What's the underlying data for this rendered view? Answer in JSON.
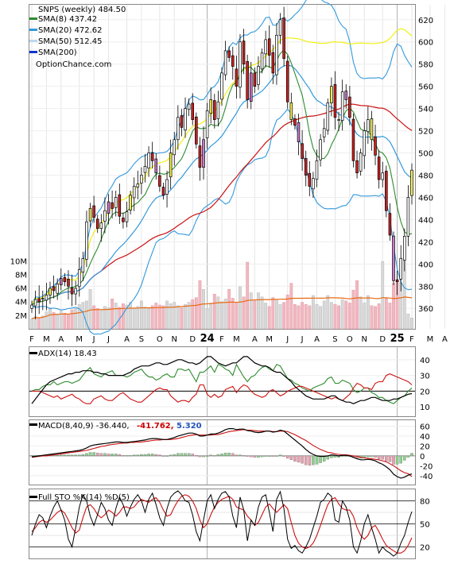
{
  "colors": {
    "sma8": "#2e8b2e",
    "sma20": "#3399dd",
    "sma50": "#f0f000",
    "sma200": "#cc1111",
    "volume_avg": "#e86a10",
    "volume_up": "#d8d8d8",
    "volume_down": "#f0b8c0",
    "candle_up": "#ffffff",
    "candle_down": "#cc2222",
    "candle_yellow": "#f5f050",
    "candle_magenta": "#cc77cc",
    "adx_line": "#000000",
    "plus_di": "#2e8b2e",
    "minus_di": "#cc1111",
    "macd_line": "#000000",
    "signal_line": "#cc1111",
    "macd_label_red": "#cc0000",
    "macd_label_blue": "#2255bb",
    "sto_k": "#000000",
    "sto_d": "#cc1111"
  },
  "legend": {
    "title": "SNPS (weekly) 484.50",
    "sma8": "SMA(8) 437.42",
    "sma20": "SMA(20) 472.62",
    "sma50": "SMA(50) 512.45",
    "sma200": "SMA(200)",
    "source": "OptionChance.com"
  },
  "panels": {
    "adx_label": "ADX(14) 18.43",
    "macd_label": "MACD(8,40,9) -36.440,",
    "macd_value_red": "-41.762,",
    "macd_value_blue": "5.320",
    "sto_label": "Full STO %K(14) %D(5)"
  },
  "chart_data": [
    {
      "type": "line",
      "name": "price",
      "y_ticks": [
        360,
        380,
        400,
        420,
        440,
        460,
        480,
        500,
        520,
        540,
        560,
        580,
        600,
        620
      ],
      "ylim": [
        343,
        632
      ],
      "x_ticks": [
        "F",
        "M",
        "A",
        "M",
        "J",
        "J",
        "A",
        "S",
        "O",
        "N",
        "D",
        "24",
        "F",
        "M",
        "A",
        "M",
        "J",
        "J",
        "A",
        "S",
        "O",
        "N",
        "D",
        "25",
        "F",
        "M",
        "A",
        "M"
      ],
      "x_tick_week": [
        0,
        4,
        8,
        13,
        17,
        21,
        26,
        30,
        35,
        39,
        44,
        48,
        52,
        56,
        61,
        65,
        70,
        74,
        78,
        83,
        87,
        91,
        96,
        100,
        104,
        109,
        113,
        117
      ],
      "year_marks": [
        48,
        100
      ],
      "close": [
        363,
        368,
        366,
        369,
        372,
        378,
        376,
        382,
        387,
        384,
        380,
        373,
        378,
        395,
        405,
        438,
        450,
        442,
        432,
        437,
        448,
        456,
        450,
        460,
        443,
        438,
        447,
        462,
        470,
        472,
        480,
        488,
        500,
        493,
        482,
        470,
        462,
        476,
        500,
        512,
        532,
        523,
        540,
        544,
        530,
        508,
        487,
        512,
        538,
        548,
        530,
        546,
        572,
        592,
        586,
        578,
        560,
        600,
        580,
        548,
        572,
        560,
        578,
        590,
        602,
        588,
        572,
        606,
        620,
        585,
        546,
        530,
        525,
        510,
        495,
        480,
        470,
        477,
        493,
        512,
        522,
        545,
        560,
        532,
        530,
        555,
        548,
        532,
        493,
        482,
        500,
        520,
        530,
        512,
        498,
        476,
        482,
        448,
        426,
        385,
        384,
        405,
        425,
        460,
        484.5
      ],
      "volume_m": [
        1.5,
        1.8,
        1.6,
        1.9,
        2.5,
        3.1,
        2.4,
        2.2,
        2.6,
        2.3,
        2.1,
        2.8,
        3.0,
        3.6,
        3.9,
        4.1,
        5.8,
        3.4,
        3.0,
        2.8,
        3.3,
        3.1,
        4.4,
        3.8,
        3.2,
        3.7,
        3.5,
        3.9,
        3.0,
        3.3,
        4.1,
        3.2,
        3.0,
        3.4,
        3.8,
        3.5,
        3.4,
        4.1,
        3.7,
        3.9,
        3.4,
        3.1,
        3.6,
        3.9,
        4.3,
        4.6,
        7.1,
        5.8,
        3.0,
        3.8,
        5.1,
        4.7,
        4.0,
        4.4,
        5.8,
        4.5,
        3.9,
        6.2,
        4.7,
        9.8,
        5.3,
        4.1,
        5.3,
        4.7,
        3.8,
        3.3,
        4.6,
        4.3,
        3.6,
        3.9,
        5.0,
        6.7,
        3.6,
        3.4,
        3.9,
        3.6,
        3.4,
        4.9,
        3.6,
        3.3,
        4.1,
        4.9,
        3.9,
        3.6,
        3.4,
        4.3,
        4.1,
        3.8,
        5.7,
        7.1,
        4.7,
        3.8,
        4.9,
        3.4,
        3.3,
        3.7,
        9.9,
        4.6,
        3.8,
        6.7,
        7.1,
        6.8,
        10.0,
        2.2,
        1.6
      ],
      "volume_ticks": [
        "2M",
        "4M",
        "6M",
        "8M",
        "10M"
      ],
      "volume_ylim": [
        0,
        11.2
      ]
    },
    {
      "type": "line",
      "name": "adx",
      "y_ticks": [
        10,
        20,
        30,
        40
      ],
      "ylim": [
        4,
        48
      ],
      "adx": [
        12,
        15,
        18,
        21,
        24,
        26,
        27,
        28,
        29,
        30,
        31,
        31,
        32,
        32,
        33,
        33,
        33,
        32,
        32,
        31,
        31,
        30,
        30,
        30,
        30,
        30,
        31,
        32,
        34,
        35,
        36,
        36,
        36,
        37,
        38,
        38,
        37,
        37,
        38,
        39,
        40,
        40,
        39,
        38,
        38,
        37,
        38,
        40,
        42,
        42,
        40,
        38,
        37,
        36,
        37,
        38,
        38,
        40,
        42,
        42,
        40,
        38,
        37,
        36,
        36,
        35,
        33,
        32,
        32,
        30,
        28,
        26,
        23,
        21,
        19,
        17,
        16,
        15,
        15,
        15,
        15,
        16,
        17,
        17,
        15,
        14,
        13,
        13,
        12,
        13,
        14,
        14,
        15,
        16,
        16,
        15,
        14,
        14,
        14,
        15,
        15,
        16,
        17,
        18,
        18.43
      ],
      "plus_di": [
        20,
        21,
        21,
        23,
        24,
        24,
        26,
        24,
        25,
        26,
        26,
        25,
        26,
        27,
        30,
        33,
        35,
        31,
        30,
        29,
        31,
        32,
        33,
        30,
        30,
        30,
        29,
        30,
        32,
        33,
        34,
        31,
        29,
        29,
        27,
        28,
        30,
        31,
        29,
        29,
        34,
        34,
        33,
        34,
        30,
        26,
        32,
        32,
        34,
        36,
        32,
        37,
        36,
        34,
        33,
        30,
        37,
        33,
        29,
        26,
        29,
        30,
        33,
        35,
        36,
        34,
        33,
        37,
        36,
        32,
        28,
        27,
        25,
        24,
        22,
        21,
        20,
        22,
        23,
        24,
        25,
        28,
        29,
        25,
        25,
        27,
        26,
        25,
        21,
        19,
        20,
        22,
        22,
        19,
        18,
        16,
        16,
        14,
        13,
        12,
        14,
        16,
        17,
        20,
        22
      ],
      "minus_di": [
        20,
        20,
        20,
        19,
        18,
        17,
        16,
        17,
        15,
        16,
        17,
        18,
        16,
        15,
        13,
        12,
        12,
        15,
        16,
        17,
        15,
        14,
        14,
        16,
        18,
        19,
        17,
        15,
        14,
        13,
        13,
        15,
        17,
        19,
        21,
        22,
        21,
        21,
        17,
        15,
        13,
        14,
        14,
        13,
        16,
        18,
        24,
        24,
        18,
        16,
        18,
        16,
        17,
        21,
        22,
        23,
        19,
        22,
        24,
        23,
        20,
        18,
        17,
        16,
        17,
        20,
        21,
        19,
        17,
        18,
        20,
        21,
        22,
        23,
        23,
        22,
        21,
        20,
        19,
        18,
        17,
        16,
        15,
        16,
        15,
        14,
        16,
        18,
        22,
        25,
        24,
        22,
        22,
        21,
        25,
        26,
        26,
        30,
        31,
        30,
        29,
        28,
        27,
        26,
        24
      ]
    },
    {
      "type": "line",
      "name": "macd",
      "y_ticks": [
        -40,
        -20,
        0,
        20,
        40,
        60
      ],
      "ylim": [
        -58,
        72
      ],
      "macd": [
        -2,
        -1,
        0,
        1,
        2,
        3,
        4,
        5,
        6,
        7,
        8,
        9,
        10,
        11,
        13,
        16,
        20,
        22,
        23,
        24,
        25,
        26,
        27,
        28,
        28,
        27,
        27,
        28,
        29,
        30,
        31,
        32,
        34,
        35,
        35,
        34,
        33,
        33,
        35,
        37,
        40,
        42,
        44,
        46,
        46,
        44,
        40,
        40,
        42,
        44,
        44,
        46,
        49,
        53,
        55,
        55,
        53,
        54,
        54,
        51,
        50,
        48,
        47,
        48,
        50,
        50,
        48,
        49,
        52,
        50,
        44,
        38,
        32,
        26,
        20,
        13,
        7,
        3,
        0,
        -1,
        -1,
        0,
        2,
        1,
        0,
        1,
        1,
        0,
        -3,
        -6,
        -8,
        -8,
        -7,
        -8,
        -10,
        -14,
        -17,
        -22,
        -28,
        -37,
        -42,
        -45,
        -43,
        -39,
        -36.44
      ],
      "signal": [
        -3,
        -2,
        -1,
        0,
        0,
        1,
        2,
        3,
        4,
        5,
        6,
        7,
        8,
        9,
        10,
        11,
        13,
        15,
        17,
        19,
        20,
        22,
        23,
        24,
        25,
        26,
        26,
        27,
        27,
        28,
        28,
        29,
        30,
        31,
        32,
        32,
        33,
        33,
        33,
        34,
        35,
        37,
        39,
        41,
        42,
        43,
        42,
        42,
        42,
        42,
        43,
        43,
        45,
        47,
        49,
        50,
        51,
        52,
        53,
        52,
        52,
        51,
        50,
        50,
        50,
        50,
        49,
        49,
        50,
        50,
        49,
        46,
        43,
        39,
        35,
        31,
        26,
        21,
        17,
        13,
        10,
        7,
        6,
        4,
        3,
        2,
        2,
        1,
        0,
        -1,
        -3,
        -4,
        -5,
        -6,
        -7,
        -8,
        -10,
        -12,
        -16,
        -20,
        -25,
        -30,
        -34,
        -36,
        -41.762
      ],
      "histogram": [
        1,
        1,
        1,
        1,
        2,
        2,
        2,
        2,
        2,
        2,
        2,
        2,
        2,
        2,
        3,
        5,
        7,
        7,
        6,
        5,
        5,
        4,
        4,
        4,
        3,
        1,
        1,
        1,
        2,
        2,
        3,
        3,
        4,
        4,
        3,
        2,
        0,
        0,
        2,
        3,
        5,
        5,
        5,
        5,
        4,
        1,
        -2,
        -2,
        0,
        2,
        1,
        3,
        4,
        6,
        6,
        5,
        2,
        2,
        1,
        -1,
        -2,
        -3,
        -3,
        -2,
        0,
        0,
        -1,
        0,
        2,
        0,
        -5,
        -8,
        -11,
        -13,
        -15,
        -18,
        -19,
        -18,
        -17,
        -14,
        -11,
        -7,
        -4,
        -3,
        -3,
        -1,
        -1,
        -1,
        -3,
        -5,
        -5,
        -4,
        -2,
        -2,
        -3,
        -6,
        -7,
        -10,
        -12,
        -17,
        -17,
        -15,
        -9,
        -3,
        5.32
      ]
    },
    {
      "type": "line",
      "name": "stochastic",
      "y_ticks": [
        20,
        50,
        80
      ],
      "ylim": [
        5,
        95
      ],
      "k": [
        35,
        50,
        62,
        58,
        45,
        60,
        72,
        80,
        68,
        55,
        30,
        20,
        45,
        72,
        88,
        80,
        60,
        48,
        62,
        78,
        70,
        55,
        48,
        70,
        85,
        75,
        60,
        72,
        82,
        88,
        80,
        65,
        82,
        90,
        75,
        58,
        48,
        70,
        85,
        90,
        93,
        88,
        80,
        78,
        62,
        40,
        28,
        55,
        80,
        88,
        70,
        82,
        90,
        92,
        85,
        60,
        45,
        85,
        68,
        28,
        55,
        48,
        72,
        85,
        88,
        65,
        40,
        82,
        92,
        70,
        30,
        18,
        22,
        15,
        12,
        20,
        30,
        45,
        60,
        78,
        82,
        90,
        86,
        55,
        52,
        80,
        72,
        55,
        20,
        12,
        28,
        50,
        62,
        45,
        30,
        12,
        20,
        15,
        12,
        8,
        12,
        25,
        35,
        52,
        66
      ],
      "d": [
        40,
        45,
        52,
        55,
        52,
        55,
        60,
        65,
        68,
        64,
        55,
        45,
        38,
        42,
        58,
        72,
        75,
        70,
        62,
        58,
        62,
        68,
        65,
        60,
        65,
        72,
        72,
        70,
        72,
        78,
        82,
        80,
        78,
        82,
        84,
        78,
        68,
        60,
        62,
        72,
        80,
        86,
        88,
        86,
        80,
        70,
        55,
        45,
        50,
        62,
        72,
        78,
        82,
        84,
        86,
        82,
        72,
        70,
        68,
        60,
        55,
        48,
        52,
        62,
        72,
        76,
        70,
        65,
        70,
        75,
        70,
        52,
        35,
        25,
        20,
        18,
        20,
        25,
        35,
        48,
        62,
        75,
        82,
        84,
        76,
        70,
        68,
        68,
        60,
        45,
        35,
        30,
        35,
        45,
        48,
        40,
        30,
        22,
        18,
        15,
        12,
        12,
        15,
        22,
        32
      ]
    }
  ]
}
